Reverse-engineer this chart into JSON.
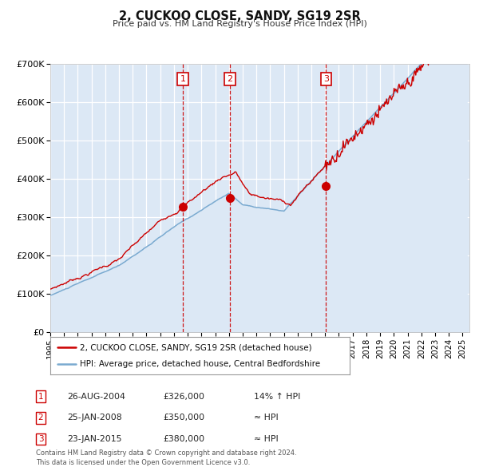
{
  "title": "2, CUCKOO CLOSE, SANDY, SG19 2SR",
  "subtitle": "Price paid vs. HM Land Registry's House Price Index (HPI)",
  "ylim": [
    0,
    700000
  ],
  "xlim_start": 1995.0,
  "xlim_end": 2025.5,
  "background_color": "#ffffff",
  "plot_bg_color": "#dce8f5",
  "grid_color": "#ffffff",
  "line1_color": "#cc0000",
  "line2_color": "#7aaad0",
  "line2_fill_color": "#dce8f5",
  "sale_marker_color": "#cc0000",
  "dashed_line_color": "#cc0000",
  "ytick_labels": [
    "£0",
    "£100K",
    "£200K",
    "£300K",
    "£400K",
    "£500K",
    "£600K",
    "£700K"
  ],
  "ytick_values": [
    0,
    100000,
    200000,
    300000,
    400000,
    500000,
    600000,
    700000
  ],
  "xtick_years": [
    1995,
    1996,
    1997,
    1998,
    1999,
    2000,
    2001,
    2002,
    2003,
    2004,
    2005,
    2006,
    2007,
    2008,
    2009,
    2010,
    2011,
    2012,
    2013,
    2014,
    2015,
    2016,
    2017,
    2018,
    2019,
    2020,
    2021,
    2022,
    2023,
    2024,
    2025
  ],
  "sale1_x": 2004.65,
  "sale1_y": 326000,
  "sale1_label": "1",
  "sale2_x": 2008.07,
  "sale2_y": 350000,
  "sale2_label": "2",
  "sale3_x": 2015.07,
  "sale3_y": 380000,
  "sale3_label": "3",
  "legend1_text": "2, CUCKOO CLOSE, SANDY, SG19 2SR (detached house)",
  "legend2_text": "HPI: Average price, detached house, Central Bedfordshire",
  "table_rows": [
    {
      "num": "1",
      "date": "26-AUG-2004",
      "price": "£326,000",
      "rel": "14% ↑ HPI"
    },
    {
      "num": "2",
      "date": "25-JAN-2008",
      "price": "£350,000",
      "rel": "≈ HPI"
    },
    {
      "num": "3",
      "date": "23-JAN-2015",
      "price": "£380,000",
      "rel": "≈ HPI"
    }
  ],
  "footnote1": "Contains HM Land Registry data © Crown copyright and database right 2024.",
  "footnote2": "This data is licensed under the Open Government Licence v3.0."
}
